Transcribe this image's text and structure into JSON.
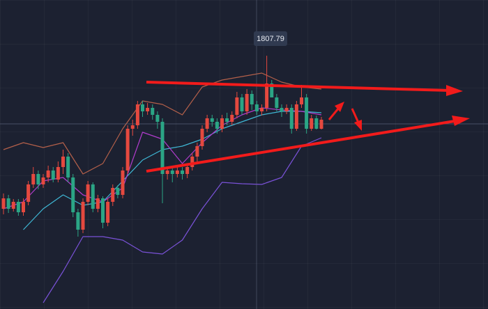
{
  "chart_data": {
    "type": "candlestick",
    "open": [
      1785.8,
      1787.3,
      1785.8,
      1786.8,
      1785.3,
      1786.8,
      1789.3,
      1790.8,
      1789.3,
      1790.3,
      1791.3,
      1790.0,
      1791.8,
      1793.3,
      1790.3,
      1785.3,
      1782.8,
      1786.8,
      1789.3,
      1785.8,
      1787.3,
      1783.8,
      1786.8,
      1788.8,
      1787.8,
      1791.3,
      1797.3,
      1797.8,
      1800.8,
      1799.8,
      1800.3,
      1799.3,
      1798.3,
      1790.8,
      1791.3,
      1790.8,
      1791.3,
      1790.8,
      1791.8,
      1793.3,
      1794.8,
      1797.3,
      1798.8,
      1798.3,
      1797.3,
      1798.8,
      1798.3,
      1799.3,
      1801.8,
      1799.8,
      1802.3,
      1800.8,
      1799.8,
      1800.3,
      1803.8,
      1801.8,
      1800.3,
      1799.8,
      1800.3,
      1797.3,
      1800.8,
      1801.8,
      1797.3,
      1798.8,
      1797.3
    ],
    "high": [
      1788.0,
      1787.8,
      1787.2,
      1787.2,
      1787.3,
      1789.8,
      1791.8,
      1791.3,
      1790.8,
      1792.0,
      1791.8,
      1792.6,
      1794.3,
      1793.8,
      1790.8,
      1785.8,
      1787.3,
      1789.8,
      1789.6,
      1787.8,
      1787.6,
      1787.3,
      1789.3,
      1789.2,
      1791.8,
      1797.8,
      1798.6,
      1801.3,
      1801.3,
      1801.0,
      1800.8,
      1799.8,
      1798.8,
      1791.8,
      1791.8,
      1792.0,
      1791.8,
      1792.3,
      1793.8,
      1795.3,
      1797.8,
      1799.3,
      1799.3,
      1798.8,
      1799.3,
      1799.6,
      1799.8,
      1802.6,
      1802.3,
      1803.0,
      1802.8,
      1801.3,
      1800.8,
      1807.79,
      1804.3,
      1802.3,
      1800.8,
      1800.8,
      1800.8,
      1801.3,
      1803.6,
      1802.3,
      1799.3,
      1799.2,
      1799.0
    ],
    "low": [
      1785.0,
      1785.2,
      1785.4,
      1784.8,
      1784.8,
      1786.3,
      1788.8,
      1788.6,
      1788.8,
      1789.6,
      1789.6,
      1789.6,
      1790.8,
      1789.6,
      1784.6,
      1781.8,
      1782.3,
      1786.3,
      1785.3,
      1785.3,
      1783.0,
      1783.3,
      1786.2,
      1787.3,
      1787.3,
      1790.8,
      1796.3,
      1797.3,
      1799.0,
      1799.3,
      1798.6,
      1797.3,
      1786.6,
      1790.0,
      1789.6,
      1790.3,
      1790.0,
      1790.2,
      1791.3,
      1792.6,
      1794.3,
      1796.8,
      1797.6,
      1796.6,
      1796.8,
      1797.8,
      1797.8,
      1798.8,
      1799.3,
      1799.3,
      1800.0,
      1799.3,
      1799.2,
      1799.8,
      1802.0,
      1799.8,
      1799.0,
      1799.4,
      1796.6,
      1797.0,
      1800.3,
      1796.6,
      1797.0,
      1797.2,
      1797.2
    ],
    "close": [
      1787.3,
      1785.8,
      1786.8,
      1785.3,
      1786.8,
      1789.3,
      1790.8,
      1789.3,
      1790.3,
      1791.3,
      1790.0,
      1791.8,
      1793.3,
      1790.3,
      1785.3,
      1782.8,
      1786.8,
      1789.3,
      1785.8,
      1787.3,
      1783.8,
      1786.8,
      1788.8,
      1787.8,
      1791.3,
      1797.3,
      1797.8,
      1800.8,
      1799.8,
      1800.3,
      1799.3,
      1798.3,
      1790.8,
      1791.3,
      1790.8,
      1791.3,
      1790.8,
      1791.8,
      1793.3,
      1794.8,
      1797.3,
      1798.8,
      1798.3,
      1797.3,
      1798.8,
      1798.3,
      1799.3,
      1801.8,
      1799.8,
      1802.3,
      1800.8,
      1799.8,
      1800.3,
      1803.8,
      1801.8,
      1800.3,
      1799.8,
      1800.3,
      1797.3,
      1800.8,
      1801.8,
      1797.3,
      1798.8,
      1797.3,
      1798.6
    ],
    "up_color": "#e5493f",
    "down_color": "#2ba585",
    "ylim": [
      1771.4,
      1815.8
    ],
    "lines": [
      {
        "color": "#b4604a",
        "x": [
          0,
          4,
          8,
          12,
          16,
          20,
          24,
          28,
          32,
          36,
          40,
          44,
          48,
          52,
          56,
          60,
          64
        ],
        "values": [
          1794.3,
          1795.3,
          1794.6,
          1795.3,
          1790.8,
          1792.3,
          1797.3,
          1801.3,
          1800.8,
          1799.3,
          1803.3,
          1804.3,
          1804.8,
          1805.3,
          1804.0,
          1803.3,
          1803.0
        ]
      },
      {
        "color": "#7a52d8",
        "x": [
          8,
          12,
          16,
          20,
          24,
          28,
          32,
          36,
          40,
          44,
          48,
          52,
          56,
          60,
          64
        ],
        "values": [
          1772.3,
          1776.8,
          1781.8,
          1781.8,
          1781.3,
          1779.6,
          1779.3,
          1781.3,
          1785.8,
          1789.6,
          1789.4,
          1789.3,
          1790.3,
          1794.8,
          1796.0
        ]
      },
      {
        "color": "#3fb8d6",
        "x": [
          4,
          8,
          12,
          16,
          20,
          24,
          28,
          32,
          36,
          40,
          44,
          48,
          52,
          56,
          60,
          64
        ],
        "values": [
          1782.8,
          1785.8,
          1787.8,
          1786.3,
          1786.8,
          1789.8,
          1792.8,
          1794.3,
          1794.8,
          1795.8,
          1797.3,
          1798.3,
          1799.3,
          1799.8,
          1799.8,
          1799.6
        ]
      },
      {
        "color": "#b13ccc",
        "x": [
          0,
          4,
          8,
          12,
          16,
          20,
          24,
          28,
          32,
          36,
          40,
          44,
          48,
          52,
          56,
          60,
          64
        ],
        "values": [
          1785.8,
          1786.8,
          1789.8,
          1790.3,
          1787.8,
          1786.8,
          1788.8,
          1796.8,
          1795.8,
          1792.3,
          1795.3,
          1797.8,
          1799.3,
          1800.3,
          1800.0,
          1799.8,
          1799.3
        ]
      }
    ],
    "annotations": [
      {
        "text": "1807.79"
      }
    ]
  }
}
